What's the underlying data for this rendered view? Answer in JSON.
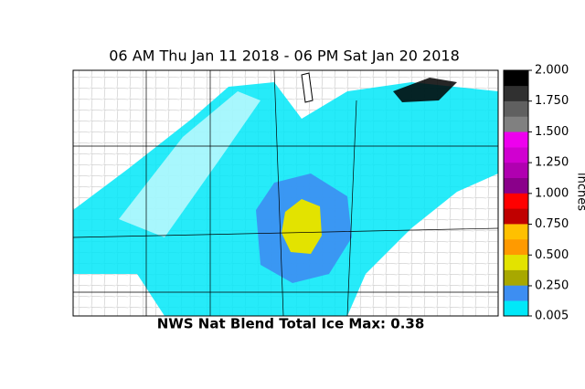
{
  "title": "06 AM Thu Jan 11 2018 - 06 PM Sat Jan 20 2018",
  "caption": "NWS Nat Blend  Total Ice   Max: 0.38",
  "colorbar": {
    "label": "inches",
    "ticks": [
      {
        "value": 0.005,
        "label": "0.005"
      },
      {
        "value": 0.25,
        "label": "0.250"
      },
      {
        "value": 0.5,
        "label": "0.500"
      },
      {
        "value": 0.75,
        "label": "0.750"
      },
      {
        "value": 1.0,
        "label": "1.000"
      },
      {
        "value": 1.25,
        "label": "1.250"
      },
      {
        "value": 1.5,
        "label": "1.500"
      },
      {
        "value": 1.75,
        "label": "1.750"
      },
      {
        "value": 2.0,
        "label": "2.000"
      }
    ],
    "colors": [
      "#00e8f8",
      "#3d8ef2",
      "#a8a800",
      "#e3e300",
      "#ff9a00",
      "#ffc000",
      "#c00000",
      "#ff0000",
      "#8a008a",
      "#b000b0",
      "#d000d0",
      "#ee00ee",
      "#808080",
      "#606060",
      "#303030",
      "#000000"
    ]
  }
}
